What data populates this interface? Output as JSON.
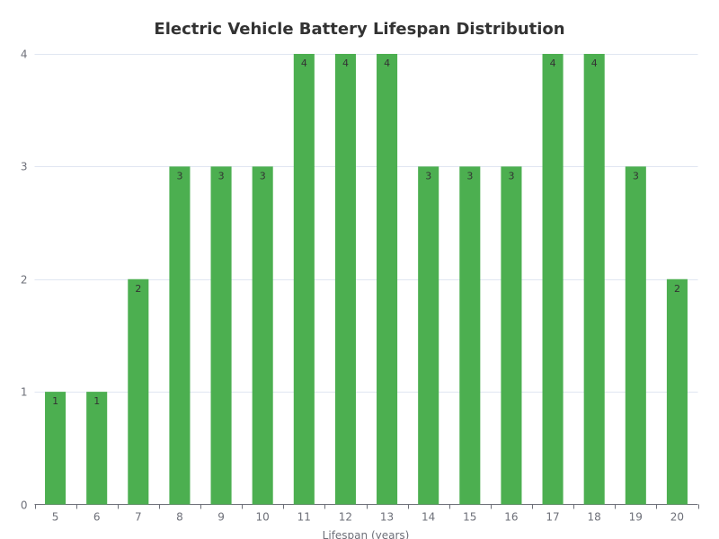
{
  "chart_data": {
    "type": "bar",
    "title": "Electric Vehicle Battery Lifespan Distribution",
    "xlabel": "Lifespan (years)",
    "ylabel": "",
    "categories": [
      "5",
      "6",
      "7",
      "8",
      "9",
      "10",
      "11",
      "12",
      "13",
      "14",
      "15",
      "16",
      "17",
      "18",
      "19",
      "20"
    ],
    "values": [
      1,
      1,
      2,
      3,
      3,
      3,
      4,
      4,
      4,
      3,
      3,
      3,
      4,
      4,
      3,
      2
    ],
    "ylim": [
      0,
      4
    ],
    "yticks": [
      0,
      1,
      2,
      3,
      4
    ],
    "bar_color": "#4caf50",
    "grid": true,
    "data_labels": true
  }
}
